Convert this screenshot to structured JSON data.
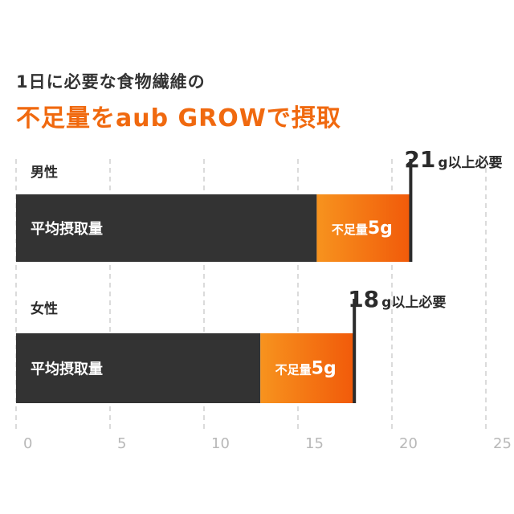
{
  "title": {
    "line1": "1日に必要な食物繊維の",
    "line2": "不足量をaub GROWで摂取",
    "line2_color": "#f0690f"
  },
  "colors": {
    "average_bar": "#333333",
    "shortfall_gradient_start": "#f7931e",
    "shortfall_gradient_end": "#f15a0a",
    "marker": "#2b2b2b",
    "grid": "#cfcfcf",
    "label_text": "#ffffff",
    "tick_text": "#b8b8b8"
  },
  "chart_data": {
    "type": "bar",
    "orientation": "horizontal",
    "stacked": true,
    "categories": [
      "男性",
      "女性"
    ],
    "series": [
      {
        "name": "平均摂取量",
        "values": [
          16,
          13
        ]
      },
      {
        "name": "不足量5g",
        "values": [
          5,
          5
        ]
      }
    ],
    "required": [
      {
        "value": 21,
        "number": "21",
        "unit": "g以上必要"
      },
      {
        "value": 18,
        "number": "18",
        "unit": "g以上必要"
      }
    ],
    "segment_labels": {
      "average": "平均摂取量",
      "shortfall_prefix": "不足量",
      "shortfall_amount": "5g"
    },
    "xlim": [
      0,
      25
    ],
    "xticks": [
      "0",
      "5",
      "10",
      "15",
      "20",
      "25"
    ],
    "grid": true
  }
}
